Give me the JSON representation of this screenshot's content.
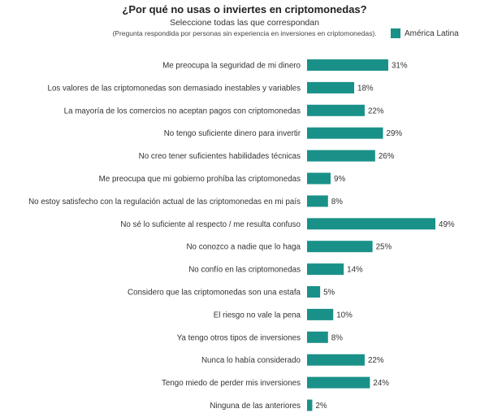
{
  "chart_data": {
    "type": "bar",
    "orientation": "horizontal",
    "title": "¿Por qué no usas o inviertes en criptomonedas?",
    "subtitle": "Seleccione todas las que correspondan",
    "note": "(Pregunta respondida por personas sin experiencia en inversiones en criptomonedas).",
    "legend_position": "top-right",
    "series": [
      {
        "name": "América Latina",
        "color": "#1a9188",
        "values": [
          31,
          18,
          22,
          29,
          26,
          9,
          8,
          49,
          25,
          14,
          5,
          10,
          8,
          22,
          24,
          2
        ],
        "labels": [
          "31%",
          "18%",
          "22%",
          "29%",
          "26%",
          "9%",
          "8%",
          "49%",
          "25%",
          "14%",
          "5%",
          "10%",
          "8%",
          "22%",
          "24%",
          "2%"
        ]
      }
    ],
    "categories": [
      "Me preocupa la seguridad de mi dinero",
      "Los valores de las criptomonedas son demasiado inestables y variables",
      "La mayoría de los comercios no aceptan pagos con criptomonedas",
      "No tengo suficiente dinero para invertir",
      "No creo tener suficientes habilidades técnicas",
      "Me preocupa que mi gobierno prohíba las criptomonedas",
      "No estoy satisfecho con la regulación actual de las criptomonedas en mi país",
      "No sé lo suficiente al respecto / me resulta confuso",
      "No conozco a nadie que lo haga",
      "No confío en las criptomonedas",
      "Considero que las criptomonedas son una estafa",
      "El riesgo no vale la pena",
      "Ya tengo otros tipos de inversiones",
      "Nunca lo había considerado",
      "Tengo miedo de perder mis inversiones",
      "Ninguna de las anteriores"
    ],
    "xlim": [
      0,
      49
    ],
    "grid": false,
    "x_axis_visible": false
  }
}
